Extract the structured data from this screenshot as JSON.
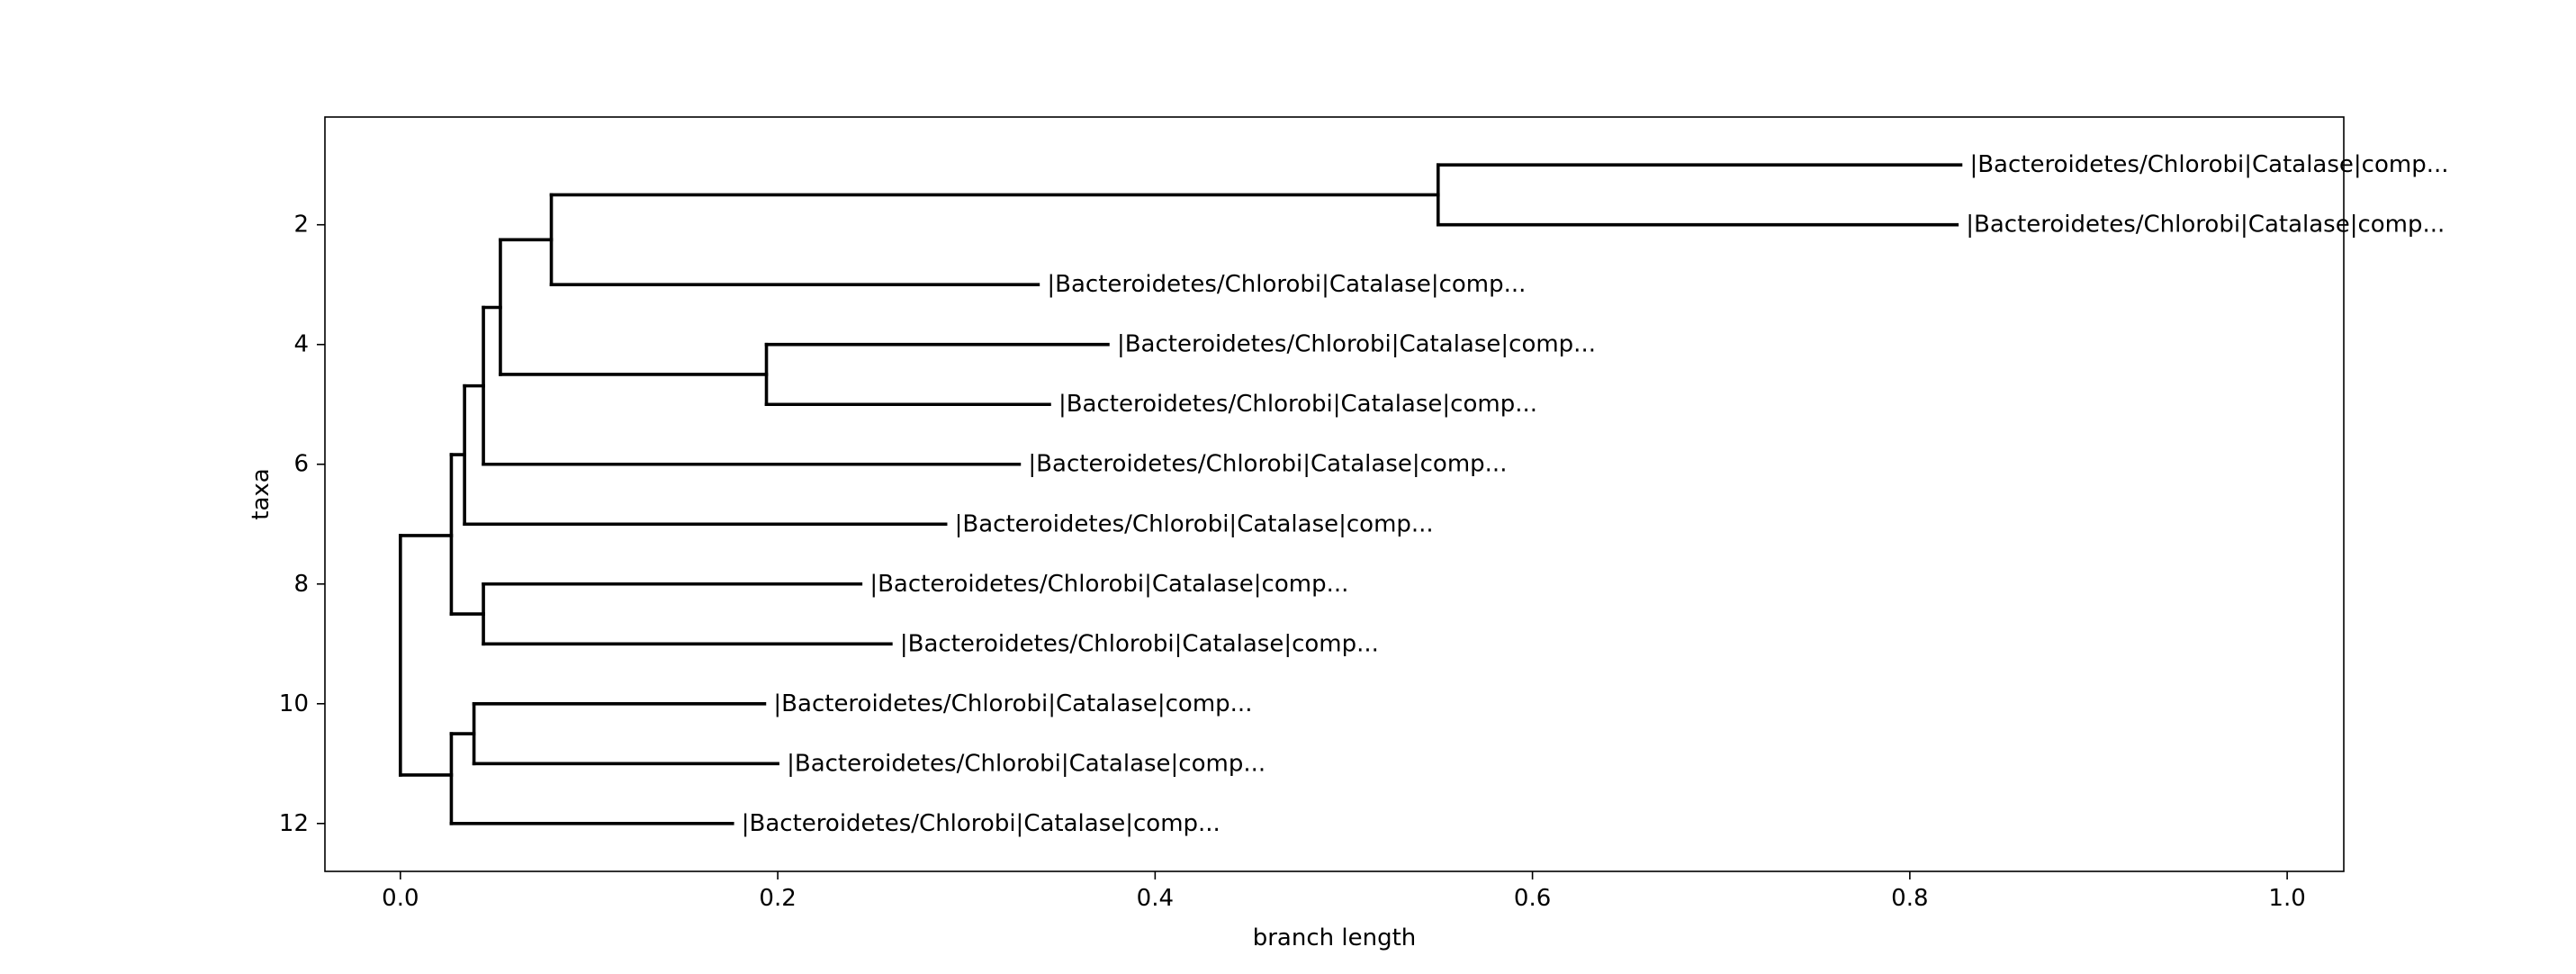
{
  "chart_data": {
    "type": "dendrogram",
    "xlabel": "branch length",
    "ylabel": "taxa",
    "xlim": [
      -0.04,
      1.03
    ],
    "ylim": [
      12.8,
      0.2
    ],
    "xticks": [
      "0.0",
      "0.2",
      "0.4",
      "0.6",
      "0.8",
      "1.0"
    ],
    "yticks": [
      "2",
      "4",
      "6",
      "8",
      "10",
      "12"
    ],
    "grid": false,
    "line_color": "#000000",
    "nodes": [
      {
        "x": 0.0,
        "y1": 7.19,
        "y2": 11.19
      },
      {
        "x": 0.027,
        "y1": 5.84,
        "y2": 8.5
      },
      {
        "x": 0.034,
        "y1": 4.69,
        "y2": 7.0
      },
      {
        "x": 0.044,
        "y1": 3.38,
        "y2": 6.0
      },
      {
        "x": 0.053,
        "y1": 2.25,
        "y2": 4.5
      },
      {
        "x": 0.08,
        "y1": 1.5,
        "y2": 3.0
      },
      {
        "x": 0.55,
        "y1": 1.0,
        "y2": 2.0
      },
      {
        "x": 0.194,
        "y1": 4.0,
        "y2": 5.0
      },
      {
        "x": 0.044,
        "y1": 8.0,
        "y2": 9.0
      },
      {
        "x": 0.027,
        "y1": 10.5,
        "y2": 12.0
      },
      {
        "x": 0.039,
        "y1": 10.0,
        "y2": 11.0
      }
    ],
    "branches": [
      {
        "y": 7.19,
        "x1": 0.0,
        "x2": 0.027
      },
      {
        "y": 11.19,
        "x1": 0.0,
        "x2": 0.027
      },
      {
        "y": 5.84,
        "x1": 0.027,
        "x2": 0.034
      },
      {
        "y": 8.5,
        "x1": 0.027,
        "x2": 0.044
      },
      {
        "y": 4.69,
        "x1": 0.034,
        "x2": 0.044
      },
      {
        "y": 7.0,
        "x1": 0.034,
        "x2": 0.289
      },
      {
        "y": 3.38,
        "x1": 0.044,
        "x2": 0.053
      },
      {
        "y": 6.0,
        "x1": 0.044,
        "x2": 0.328
      },
      {
        "y": 2.25,
        "x1": 0.053,
        "x2": 0.08
      },
      {
        "y": 4.5,
        "x1": 0.053,
        "x2": 0.194
      },
      {
        "y": 1.5,
        "x1": 0.08,
        "x2": 0.55
      },
      {
        "y": 3.0,
        "x1": 0.08,
        "x2": 0.338
      },
      {
        "y": 1.0,
        "x1": 0.55,
        "x2": 0.827
      },
      {
        "y": 2.0,
        "x1": 0.55,
        "x2": 0.825
      },
      {
        "y": 4.0,
        "x1": 0.194,
        "x2": 0.375
      },
      {
        "y": 5.0,
        "x1": 0.194,
        "x2": 0.344
      },
      {
        "y": 8.0,
        "x1": 0.044,
        "x2": 0.244
      },
      {
        "y": 9.0,
        "x1": 0.044,
        "x2": 0.26
      },
      {
        "y": 10.5,
        "x1": 0.027,
        "x2": 0.039
      },
      {
        "y": 12.0,
        "x1": 0.027,
        "x2": 0.176
      },
      {
        "y": 10.0,
        "x1": 0.039,
        "x2": 0.193
      },
      {
        "y": 11.0,
        "x1": 0.039,
        "x2": 0.2
      }
    ],
    "leaves": [
      {
        "y": 1,
        "x": 0.827,
        "label": "|Bacteroidetes/Chlorobi|Catalase|comp..."
      },
      {
        "y": 2,
        "x": 0.825,
        "label": "|Bacteroidetes/Chlorobi|Catalase|comp..."
      },
      {
        "y": 3,
        "x": 0.338,
        "label": "|Bacteroidetes/Chlorobi|Catalase|comp..."
      },
      {
        "y": 4,
        "x": 0.375,
        "label": "|Bacteroidetes/Chlorobi|Catalase|comp..."
      },
      {
        "y": 5,
        "x": 0.344,
        "label": "|Bacteroidetes/Chlorobi|Catalase|comp..."
      },
      {
        "y": 6,
        "x": 0.328,
        "label": "|Bacteroidetes/Chlorobi|Catalase|comp..."
      },
      {
        "y": 7,
        "x": 0.289,
        "label": "|Bacteroidetes/Chlorobi|Catalase|comp..."
      },
      {
        "y": 8,
        "x": 0.244,
        "label": "|Bacteroidetes/Chlorobi|Catalase|comp..."
      },
      {
        "y": 9,
        "x": 0.26,
        "label": "|Bacteroidetes/Chlorobi|Catalase|comp..."
      },
      {
        "y": 10,
        "x": 0.193,
        "label": "|Bacteroidetes/Chlorobi|Catalase|comp..."
      },
      {
        "y": 11,
        "x": 0.2,
        "label": "|Bacteroidetes/Chlorobi|Catalase|comp..."
      },
      {
        "y": 12,
        "x": 0.176,
        "label": "|Bacteroidetes/Chlorobi|Catalase|comp..."
      }
    ]
  }
}
